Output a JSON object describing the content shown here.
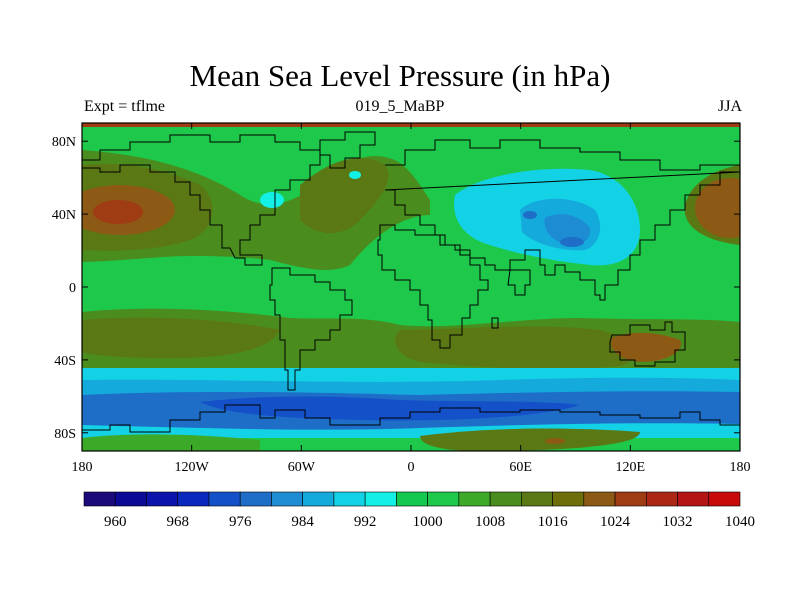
{
  "title": "Mean Sea Level Pressure (in hPa)",
  "left_label": "Expt = tflme",
  "center_label": "019_5_MaBP",
  "right_label": "JJA",
  "map": {
    "lon_range": [
      -180,
      180
    ],
    "lat_range": [
      -90,
      90
    ],
    "lat_ticks": [
      {
        "value": 80,
        "label": "80N"
      },
      {
        "value": 40,
        "label": "40N"
      },
      {
        "value": 0,
        "label": "0"
      },
      {
        "value": -40,
        "label": "40S"
      },
      {
        "value": -80,
        "label": "80S"
      }
    ],
    "lon_ticks": [
      {
        "value": -180,
        "label": "180"
      },
      {
        "value": -120,
        "label": "120W"
      },
      {
        "value": -60,
        "label": "60W"
      },
      {
        "value": 0,
        "label": "0"
      },
      {
        "value": 60,
        "label": "60E"
      },
      {
        "value": 120,
        "label": "120E"
      },
      {
        "value": 180,
        "label": "180"
      }
    ]
  },
  "colorbar": {
    "levels": [
      960,
      964,
      968,
      972,
      976,
      980,
      984,
      988,
      992,
      996,
      1000,
      1004,
      1008,
      1012,
      1016,
      1020,
      1024,
      1028,
      1032,
      1036,
      1040
    ],
    "labels": [
      "960",
      "968",
      "976",
      "984",
      "992",
      "1000",
      "1008",
      "1016",
      "1024",
      "1032",
      "1040"
    ],
    "colors": [
      "#1a0a7a",
      "#0a0a96",
      "#0a14aa",
      "#0a28be",
      "#1450c8",
      "#1e6ec8",
      "#1e8cd2",
      "#14aadc",
      "#14d2e6",
      "#14f0e6",
      "#14c850",
      "#1ec84b",
      "#3caa28",
      "#4b8c1e",
      "#5a7814",
      "#6e6e0a",
      "#8c5a14",
      "#a03c14",
      "#aa2814",
      "#b41414",
      "#c80a0a"
    ]
  },
  "chart_data": {
    "type": "heatmap",
    "title": "Mean Sea Level Pressure (in hPa)",
    "variable": "Mean Sea Level Pressure",
    "units": "hPa",
    "experiment": "tflme",
    "period": "019_5_MaBP",
    "season": "JJA",
    "contour_levels": [
      960,
      964,
      968,
      972,
      976,
      980,
      984,
      988,
      992,
      996,
      1000,
      1004,
      1008,
      1012,
      1016,
      1020,
      1024,
      1028,
      1032,
      1036,
      1040
    ],
    "regions": [
      {
        "lon": [
          -180,
          180
        ],
        "lat": [
          -90,
          90
        ],
        "value": 1010
      },
      {
        "lon": [
          -180,
          180
        ],
        "lat": [
          15,
          52
        ],
        "value": 1018
      },
      {
        "lon": [
          -180,
          180
        ],
        "lat": [
          -40,
          -15
        ],
        "value": 1018
      },
      {
        "lon": [
          -180,
          180
        ],
        "lat": [
          -62,
          -50
        ],
        "value": 998
      },
      {
        "lon": [
          -180,
          180
        ],
        "lat": [
          -75,
          -62
        ],
        "value": 986
      },
      {
        "lon": [
          -180,
          180
        ],
        "lat": [
          -82,
          -75
        ],
        "value": 994
      },
      {
        "lon": [
          -180,
          180
        ],
        "lat": [
          -90,
          -82
        ],
        "value": 1004
      },
      {
        "lon": [
          -180,
          -150
        ],
        "lat": [
          28,
          48
        ],
        "value": 1024
      },
      {
        "lon": [
          150,
          180
        ],
        "lat": [
          28,
          48
        ],
        "value": 1024
      },
      {
        "lon": [
          30,
          120
        ],
        "lat": [
          10,
          58
        ],
        "value": 1004
      },
      {
        "lon": [
          40,
          115
        ],
        "lat": [
          15,
          55
        ],
        "value": 998
      },
      {
        "lon": [
          55,
          95
        ],
        "lat": [
          22,
          42
        ],
        "value": 990
      },
      {
        "lon": [
          70,
          88
        ],
        "lat": [
          25,
          32
        ],
        "value": 986
      },
      {
        "lon": [
          -45,
          120
        ],
        "lat": [
          -35,
          -20
        ],
        "value": 1020
      },
      {
        "lon": [
          15,
          110
        ],
        "lat": [
          -90,
          -82
        ],
        "value": 1020
      },
      {
        "lon": [
          -180,
          180
        ],
        "lat": [
          84,
          90
        ],
        "value": 1032
      }
    ]
  }
}
